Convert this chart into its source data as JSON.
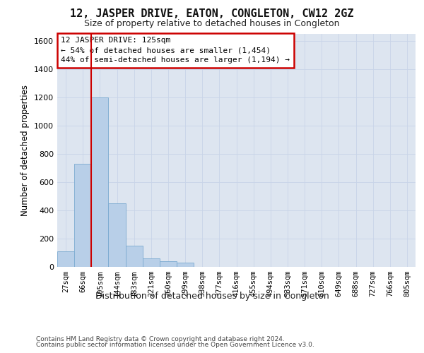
{
  "title": "12, JASPER DRIVE, EATON, CONGLETON, CW12 2GZ",
  "subtitle": "Size of property relative to detached houses in Congleton",
  "xlabel": "Distribution of detached houses by size in Congleton",
  "ylabel": "Number of detached properties",
  "categories": [
    "27sqm",
    "66sqm",
    "105sqm",
    "144sqm",
    "183sqm",
    "221sqm",
    "260sqm",
    "299sqm",
    "338sqm",
    "377sqm",
    "416sqm",
    "455sqm",
    "494sqm",
    "533sqm",
    "571sqm",
    "610sqm",
    "649sqm",
    "688sqm",
    "727sqm",
    "766sqm",
    "805sqm"
  ],
  "values": [
    110,
    730,
    1200,
    450,
    150,
    60,
    40,
    30,
    0,
    0,
    0,
    0,
    0,
    0,
    0,
    0,
    0,
    0,
    0,
    0,
    0
  ],
  "bar_color": "#b8cfe8",
  "bar_edge_color": "#7aaad0",
  "vline_color": "#cc0000",
  "vline_x_index": 2,
  "annotation_line1": "12 JASPER DRIVE: 125sqm",
  "annotation_line2": "← 54% of detached houses are smaller (1,454)",
  "annotation_line3": "44% of semi-detached houses are larger (1,194) →",
  "annotation_box_edge": "#cc0000",
  "ylim": [
    0,
    1650
  ],
  "yticks": [
    0,
    200,
    400,
    600,
    800,
    1000,
    1200,
    1400,
    1600
  ],
  "bg_color": "#dde5f0",
  "footer1": "Contains HM Land Registry data © Crown copyright and database right 2024.",
  "footer2": "Contains public sector information licensed under the Open Government Licence v3.0."
}
